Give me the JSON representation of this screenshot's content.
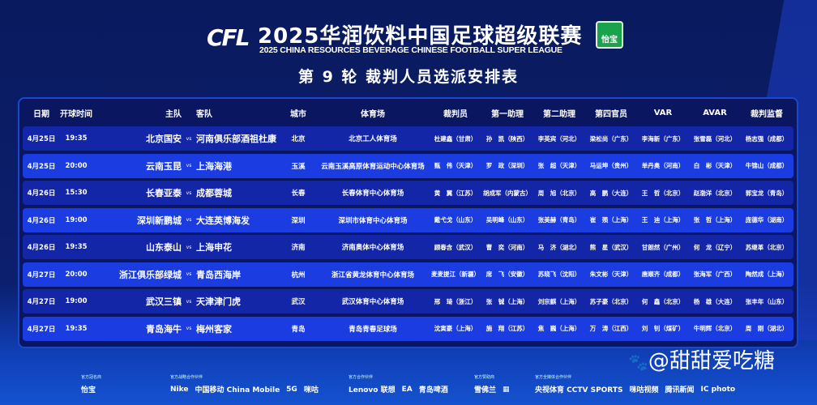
{
  "header": {
    "logo_text": "CFL",
    "title": "2025华润饮料中国足球超级联赛",
    "subtitle": "2025 CHINA RESOURCES BEVERAGE CHINESE FOOTBALL SUPER LEAGUE",
    "sponsor_badge": "怡宝",
    "round_title": "第 9 轮 裁判人员选派安排表"
  },
  "columns": {
    "date": "日期",
    "time": "开球时间",
    "home": "主队",
    "away": "客队",
    "city": "城市",
    "stadium": "体育场",
    "referee": "裁判员",
    "assistant1": "第一助理",
    "assistant2": "第二助理",
    "fourth": "第四官员",
    "var": "VAR",
    "avar": "AVAR",
    "supervisor": "裁判监督"
  },
  "vs": "vs",
  "rows": [
    {
      "date": "4月25日",
      "time": "19:35",
      "home": "北京国安",
      "away": "河南俱乐部酒祖杜康",
      "city": "北京",
      "stadium": "北京工人体育场",
      "referee": "杜建鑫（甘肃）",
      "assistant1": "孙　凯（陕西）",
      "assistant2": "李英宾（河北）",
      "fourth": "梁松尚（广东）",
      "var": "李海新（广东）",
      "avar": "张雪磊（河北）",
      "supervisor": "杨志强（成都）"
    },
    {
      "date": "4月25日",
      "time": "20:00",
      "home": "云南玉昆",
      "away": "上海海港",
      "city": "玉溪",
      "stadium": "云南玉溪高原体育运动中心体育场",
      "referee": "甄　伟（天津）",
      "assistant1": "罗　政（深圳）",
      "assistant2": "张　超（天津）",
      "fourth": "马运坤（贵州）",
      "var": "单丹奥（河南）",
      "avar": "白　彬（天津）",
      "supervisor": "牛锦山（成都）"
    },
    {
      "date": "4月26日",
      "time": "15:30",
      "home": "长春亚泰",
      "away": "成都蓉城",
      "city": "长春",
      "stadium": "长春体育中心体育场",
      "referee": "黄　翼（江苏）",
      "assistant1": "胡成军（内蒙古）",
      "assistant2": "周　旭（北京）",
      "fourth": "高　鹏（大连）",
      "var": "王　哲（北京）",
      "avar": "赵渤洋（北京）",
      "supervisor": "郭宝龙（青岛）"
    },
    {
      "date": "4月26日",
      "time": "19:00",
      "home": "深圳新鹏城",
      "away": "大连英博海发",
      "city": "深圳",
      "stadium": "深圳市体育中心体育场",
      "referee": "戴弋戈（山东）",
      "assistant1": "吴明峰（山东）",
      "assistant2": "张美赫（青岛）",
      "fourth": "崔　殒（上海）",
      "var": "王　迪（上海）",
      "avar": "张　哲（上海）",
      "supervisor": "庞德华（湖南）"
    },
    {
      "date": "4月26日",
      "time": "19:35",
      "home": "山东泰山",
      "away": "上海申花",
      "city": "济南",
      "stadium": "济南奥体中心体育场",
      "referee": "顾春含（武汉）",
      "assistant1": "曹　奕（河南）",
      "assistant2": "马　济（湖北）",
      "fourth": "熊　星（武汉）",
      "var": "甘朗然（广州）",
      "avar": "何　龙（辽宁）",
      "supervisor": "苏继革（北京）"
    },
    {
      "date": "4月27日",
      "time": "20:00",
      "home": "浙江俱乐部绿城",
      "away": "青岛西海岸",
      "city": "杭州",
      "stadium": "浙江省黄龙体育中心体育场",
      "referee": "麦麦提江（新疆）",
      "assistant1": "席　飞（安徽）",
      "assistant2": "苏晓飞（沈阳）",
      "fourth": "朱文彬（天津）",
      "var": "唐顺齐（成都）",
      "avar": "张海军（广西）",
      "supervisor": "陶然成（上海）"
    },
    {
      "date": "4月27日",
      "time": "19:00",
      "home": "武汉三镇",
      "away": "天津津门虎",
      "city": "武汉",
      "stadium": "武汉体育中心体育场",
      "referee": "邢　琦（浙江）",
      "assistant1": "张　铖（上海）",
      "assistant2": "刘宗麒（上海）",
      "fourth": "苏子豪（北京）",
      "var": "何　鑫（北京）",
      "avar": "杨　雄（大连）",
      "supervisor": "张丰年（山东）"
    },
    {
      "date": "4月27日",
      "time": "19:35",
      "home": "青岛海牛",
      "away": "梅州客家",
      "city": "青岛",
      "stadium": "青岛青春足球场",
      "referee": "沈寅豪（上海）",
      "assistant1": "施　翔（江苏）",
      "assistant2": "焦　巍（上海）",
      "fourth": "万　涛（江西）",
      "var": "刘　钊（煤矿）",
      "avar": "牛明辉（北京）",
      "supervisor": "周　刚（湖北）"
    }
  ],
  "footer": {
    "groups": [
      {
        "caption": "官方冠名商",
        "logos": [
          "怡宝"
        ]
      },
      {
        "caption": "官方战略合作伙伴",
        "logos": [
          "Nike",
          "中国移动 China Mobile",
          "5G",
          "咪咕"
        ]
      },
      {
        "caption": "官方合作伙伴",
        "logos": [
          "Lenovo 联想",
          "EA",
          "青岛啤酒"
        ]
      },
      {
        "caption": "官方赞助商",
        "logos": [
          "雪佛兰",
          "▦"
        ]
      },
      {
        "caption": "官方全媒体合作伙伴",
        "logos": [
          "央视体育 CCTV SPORTS",
          "咪咕视频",
          "腾讯新闻",
          "IC photo"
        ]
      }
    ]
  },
  "watermark": "@甜甜爱吃糖"
}
